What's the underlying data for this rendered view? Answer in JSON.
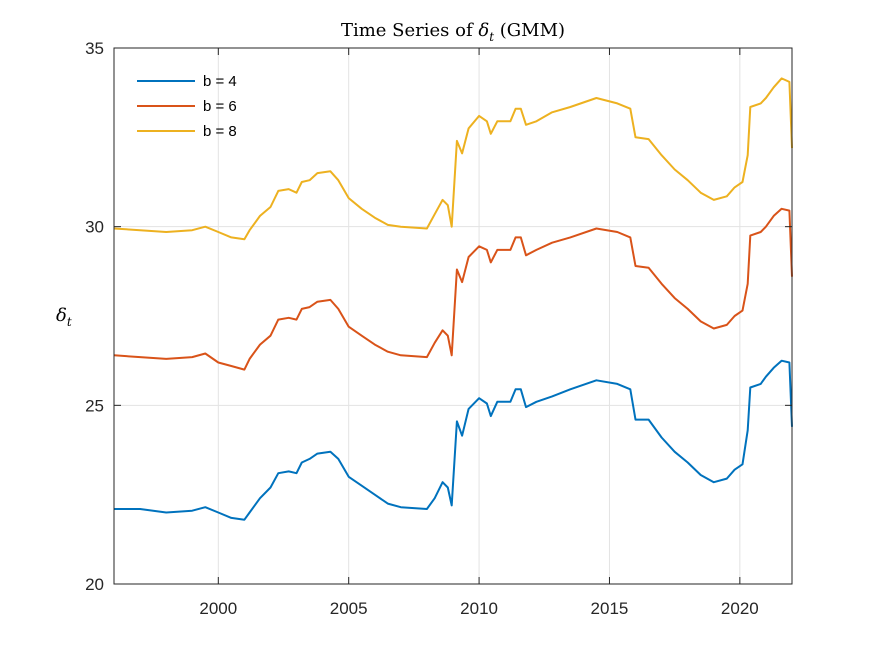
{
  "chart_data": {
    "type": "line",
    "title": "Time Series of δ_t (GMM)",
    "title_parts": {
      "prefix": "Time Series of ",
      "symbol": "δ",
      "subscript": "t",
      "suffix": " (GMM)"
    },
    "ylabel": "δ_t",
    "ylabel_parts": {
      "symbol": "δ",
      "subscript": "t"
    },
    "xlim": [
      1996,
      2022
    ],
    "ylim": [
      20,
      35
    ],
    "xticks": [
      2000,
      2005,
      2010,
      2015,
      2020
    ],
    "yticks": [
      20,
      25,
      30,
      35
    ],
    "grid": true,
    "legend_position": "top-left",
    "series": [
      {
        "name": "b = 4",
        "color": "#0072BD",
        "points": [
          [
            1996.0,
            22.1
          ],
          [
            1997.0,
            22.1
          ],
          [
            1998.0,
            22.0
          ],
          [
            1999.0,
            22.05
          ],
          [
            1999.5,
            22.15
          ],
          [
            2000.0,
            22.0
          ],
          [
            2000.5,
            21.85
          ],
          [
            2001.0,
            21.8
          ],
          [
            2001.2,
            22.0
          ],
          [
            2001.6,
            22.4
          ],
          [
            2002.0,
            22.7
          ],
          [
            2002.3,
            23.1
          ],
          [
            2002.7,
            23.15
          ],
          [
            2003.0,
            23.1
          ],
          [
            2003.2,
            23.4
          ],
          [
            2003.5,
            23.5
          ],
          [
            2003.8,
            23.65
          ],
          [
            2004.3,
            23.7
          ],
          [
            2004.6,
            23.5
          ],
          [
            2005.0,
            23.0
          ],
          [
            2005.5,
            22.75
          ],
          [
            2006.0,
            22.5
          ],
          [
            2006.5,
            22.25
          ],
          [
            2007.0,
            22.15
          ],
          [
            2008.0,
            22.1
          ],
          [
            2008.3,
            22.4
          ],
          [
            2008.6,
            22.85
          ],
          [
            2008.8,
            22.7
          ],
          [
            2008.95,
            22.2
          ],
          [
            2009.15,
            24.55
          ],
          [
            2009.35,
            24.15
          ],
          [
            2009.6,
            24.9
          ],
          [
            2010.0,
            25.2
          ],
          [
            2010.3,
            25.05
          ],
          [
            2010.45,
            24.7
          ],
          [
            2010.7,
            25.1
          ],
          [
            2011.2,
            25.1
          ],
          [
            2011.4,
            25.45
          ],
          [
            2011.6,
            25.45
          ],
          [
            2011.8,
            24.95
          ],
          [
            2012.2,
            25.1
          ],
          [
            2012.8,
            25.25
          ],
          [
            2013.5,
            25.45
          ],
          [
            2014.5,
            25.7
          ],
          [
            2015.3,
            25.6
          ],
          [
            2015.8,
            25.45
          ],
          [
            2016.0,
            24.6
          ],
          [
            2016.5,
            24.6
          ],
          [
            2017.0,
            24.1
          ],
          [
            2017.5,
            23.7
          ],
          [
            2018.0,
            23.4
          ],
          [
            2018.5,
            23.05
          ],
          [
            2019.0,
            22.85
          ],
          [
            2019.5,
            22.95
          ],
          [
            2019.8,
            23.2
          ],
          [
            2020.1,
            23.35
          ],
          [
            2020.3,
            24.3
          ],
          [
            2020.4,
            25.5
          ],
          [
            2020.8,
            25.6
          ],
          [
            2021.0,
            25.8
          ],
          [
            2021.3,
            26.05
          ],
          [
            2021.6,
            26.25
          ],
          [
            2021.9,
            26.2
          ],
          [
            2022.0,
            24.4
          ]
        ]
      },
      {
        "name": "b = 6",
        "color": "#D95319",
        "points": [
          [
            1996.0,
            26.4
          ],
          [
            1997.0,
            26.35
          ],
          [
            1998.0,
            26.3
          ],
          [
            1999.0,
            26.35
          ],
          [
            1999.5,
            26.45
          ],
          [
            2000.0,
            26.2
          ],
          [
            2000.5,
            26.1
          ],
          [
            2001.0,
            26.0
          ],
          [
            2001.2,
            26.3
          ],
          [
            2001.6,
            26.7
          ],
          [
            2002.0,
            26.95
          ],
          [
            2002.3,
            27.4
          ],
          [
            2002.7,
            27.45
          ],
          [
            2003.0,
            27.4
          ],
          [
            2003.2,
            27.7
          ],
          [
            2003.5,
            27.75
          ],
          [
            2003.8,
            27.9
          ],
          [
            2004.3,
            27.95
          ],
          [
            2004.6,
            27.7
          ],
          [
            2005.0,
            27.2
          ],
          [
            2005.5,
            26.95
          ],
          [
            2006.0,
            26.7
          ],
          [
            2006.5,
            26.5
          ],
          [
            2007.0,
            26.4
          ],
          [
            2008.0,
            26.35
          ],
          [
            2008.3,
            26.75
          ],
          [
            2008.6,
            27.1
          ],
          [
            2008.8,
            26.95
          ],
          [
            2008.95,
            26.4
          ],
          [
            2009.15,
            28.8
          ],
          [
            2009.35,
            28.45
          ],
          [
            2009.6,
            29.15
          ],
          [
            2010.0,
            29.45
          ],
          [
            2010.3,
            29.35
          ],
          [
            2010.45,
            29.0
          ],
          [
            2010.7,
            29.35
          ],
          [
            2011.2,
            29.35
          ],
          [
            2011.4,
            29.7
          ],
          [
            2011.6,
            29.7
          ],
          [
            2011.8,
            29.2
          ],
          [
            2012.2,
            29.35
          ],
          [
            2012.8,
            29.55
          ],
          [
            2013.5,
            29.7
          ],
          [
            2014.5,
            29.95
          ],
          [
            2015.3,
            29.85
          ],
          [
            2015.8,
            29.7
          ],
          [
            2016.0,
            28.9
          ],
          [
            2016.5,
            28.85
          ],
          [
            2017.0,
            28.4
          ],
          [
            2017.5,
            28.0
          ],
          [
            2018.0,
            27.7
          ],
          [
            2018.5,
            27.35
          ],
          [
            2019.0,
            27.15
          ],
          [
            2019.5,
            27.25
          ],
          [
            2019.8,
            27.5
          ],
          [
            2020.1,
            27.65
          ],
          [
            2020.3,
            28.4
          ],
          [
            2020.4,
            29.75
          ],
          [
            2020.8,
            29.85
          ],
          [
            2021.0,
            30.0
          ],
          [
            2021.3,
            30.3
          ],
          [
            2021.6,
            30.5
          ],
          [
            2021.9,
            30.45
          ],
          [
            2022.0,
            28.6
          ]
        ]
      },
      {
        "name": "b = 8",
        "color": "#EDB120",
        "points": [
          [
            1996.0,
            29.95
          ],
          [
            1997.0,
            29.9
          ],
          [
            1998.0,
            29.85
          ],
          [
            1999.0,
            29.9
          ],
          [
            1999.5,
            30.0
          ],
          [
            2000.0,
            29.85
          ],
          [
            2000.5,
            29.7
          ],
          [
            2001.0,
            29.65
          ],
          [
            2001.2,
            29.9
          ],
          [
            2001.6,
            30.3
          ],
          [
            2002.0,
            30.55
          ],
          [
            2002.3,
            31.0
          ],
          [
            2002.7,
            31.05
          ],
          [
            2003.0,
            30.95
          ],
          [
            2003.2,
            31.25
          ],
          [
            2003.5,
            31.3
          ],
          [
            2003.8,
            31.5
          ],
          [
            2004.3,
            31.55
          ],
          [
            2004.6,
            31.3
          ],
          [
            2005.0,
            30.8
          ],
          [
            2005.5,
            30.5
          ],
          [
            2006.0,
            30.25
          ],
          [
            2006.5,
            30.05
          ],
          [
            2007.0,
            30.0
          ],
          [
            2008.0,
            29.95
          ],
          [
            2008.3,
            30.35
          ],
          [
            2008.6,
            30.75
          ],
          [
            2008.8,
            30.6
          ],
          [
            2008.95,
            30.0
          ],
          [
            2009.15,
            32.4
          ],
          [
            2009.35,
            32.05
          ],
          [
            2009.6,
            32.75
          ],
          [
            2010.0,
            33.1
          ],
          [
            2010.3,
            32.95
          ],
          [
            2010.45,
            32.6
          ],
          [
            2010.7,
            32.95
          ],
          [
            2011.2,
            32.95
          ],
          [
            2011.4,
            33.3
          ],
          [
            2011.6,
            33.3
          ],
          [
            2011.8,
            32.85
          ],
          [
            2012.2,
            32.95
          ],
          [
            2012.8,
            33.2
          ],
          [
            2013.5,
            33.35
          ],
          [
            2014.5,
            33.6
          ],
          [
            2015.3,
            33.45
          ],
          [
            2015.8,
            33.3
          ],
          [
            2016.0,
            32.5
          ],
          [
            2016.5,
            32.45
          ],
          [
            2017.0,
            32.0
          ],
          [
            2017.5,
            31.6
          ],
          [
            2018.0,
            31.3
          ],
          [
            2018.5,
            30.95
          ],
          [
            2019.0,
            30.75
          ],
          [
            2019.5,
            30.85
          ],
          [
            2019.8,
            31.1
          ],
          [
            2020.1,
            31.25
          ],
          [
            2020.3,
            32.0
          ],
          [
            2020.4,
            33.35
          ],
          [
            2020.8,
            33.45
          ],
          [
            2021.0,
            33.6
          ],
          [
            2021.3,
            33.9
          ],
          [
            2021.6,
            34.15
          ],
          [
            2021.9,
            34.05
          ],
          [
            2022.0,
            32.2
          ]
        ]
      }
    ]
  }
}
